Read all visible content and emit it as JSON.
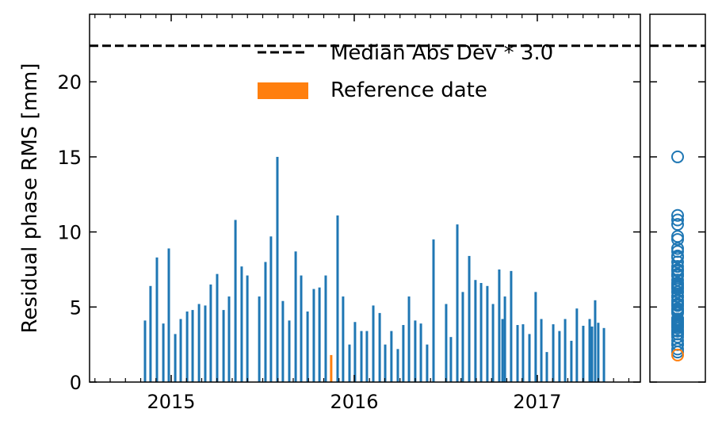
{
  "chart_data": {
    "type": "bar",
    "title": "",
    "xlabel": "",
    "ylabel": "Residual phase RMS [mm]",
    "xlim": [
      2014.554,
      2017.563
    ],
    "ylim": [
      0,
      24.5
    ],
    "xticks": [
      {
        "value": 2015,
        "label": "2015"
      },
      {
        "value": 2016,
        "label": "2016"
      },
      {
        "value": 2017,
        "label": "2017"
      }
    ],
    "yticks": [
      {
        "value": 0,
        "label": "0"
      },
      {
        "value": 5,
        "label": "5"
      },
      {
        "value": 10,
        "label": "10"
      },
      {
        "value": 15,
        "label": "15"
      },
      {
        "value": 20,
        "label": "20"
      }
    ],
    "threshold": {
      "value": 22.4,
      "label": "Median Abs Dev * 3.0"
    },
    "legend": {
      "placement": "top-right",
      "entries": [
        "Median Abs Dev * 3.0",
        "Reference date"
      ]
    },
    "colors": {
      "bars": "#1f77b4",
      "reference": "#ff7f0e",
      "threshold": "#000000"
    },
    "reference": {
      "x": 2015.874,
      "value": 1.8,
      "label": "Reference date"
    },
    "x": [
      2014.857,
      2014.887,
      2014.922,
      2014.957,
      2014.987,
      2015.022,
      2015.052,
      2015.087,
      2015.117,
      2015.152,
      2015.186,
      2015.216,
      2015.251,
      2015.286,
      2015.316,
      2015.351,
      2015.385,
      2015.416,
      2015.481,
      2015.515,
      2015.545,
      2015.58,
      2015.61,
      2015.645,
      2015.68,
      2015.71,
      2015.745,
      2015.779,
      2015.81,
      2015.844,
      2015.909,
      2015.939,
      2015.974,
      2016.004,
      2016.039,
      2016.069,
      2016.104,
      2016.139,
      2016.169,
      2016.203,
      2016.238,
      2016.268,
      2016.299,
      2016.333,
      2016.364,
      2016.398,
      2016.433,
      2016.502,
      2016.528,
      2016.563,
      2016.593,
      2016.628,
      2016.662,
      2016.693,
      2016.727,
      2016.758,
      2016.792,
      2016.81,
      2016.823,
      2016.857,
      2016.892,
      2016.922,
      2016.957,
      2016.991,
      2017.022,
      2017.052,
      2017.087,
      2017.121,
      2017.152,
      2017.186,
      2017.216,
      2017.251,
      2017.286,
      2017.299,
      2017.316,
      2017.333,
      2017.364
    ],
    "values": [
      4.1,
      6.4,
      8.3,
      3.9,
      8.9,
      3.2,
      4.2,
      4.7,
      4.8,
      5.2,
      5.1,
      6.5,
      7.2,
      4.8,
      5.7,
      10.8,
      7.7,
      7.1,
      5.7,
      8.0,
      9.7,
      15.0,
      5.4,
      4.1,
      8.7,
      7.1,
      4.7,
      6.2,
      6.3,
      7.1,
      11.1,
      5.7,
      2.5,
      4.0,
      3.4,
      3.4,
      5.1,
      4.6,
      2.5,
      3.4,
      2.2,
      3.8,
      5.7,
      4.1,
      3.9,
      2.5,
      9.5,
      5.2,
      3.0,
      10.5,
      6.0,
      8.4,
      6.8,
      6.6,
      6.4,
      5.2,
      7.5,
      4.2,
      5.7,
      7.4,
      3.8,
      3.85,
      3.2,
      6.0,
      4.2,
      2.0,
      3.85,
      3.4,
      4.2,
      2.75,
      4.9,
      3.75,
      4.2,
      3.7,
      5.45,
      3.95,
      3.6
    ]
  }
}
